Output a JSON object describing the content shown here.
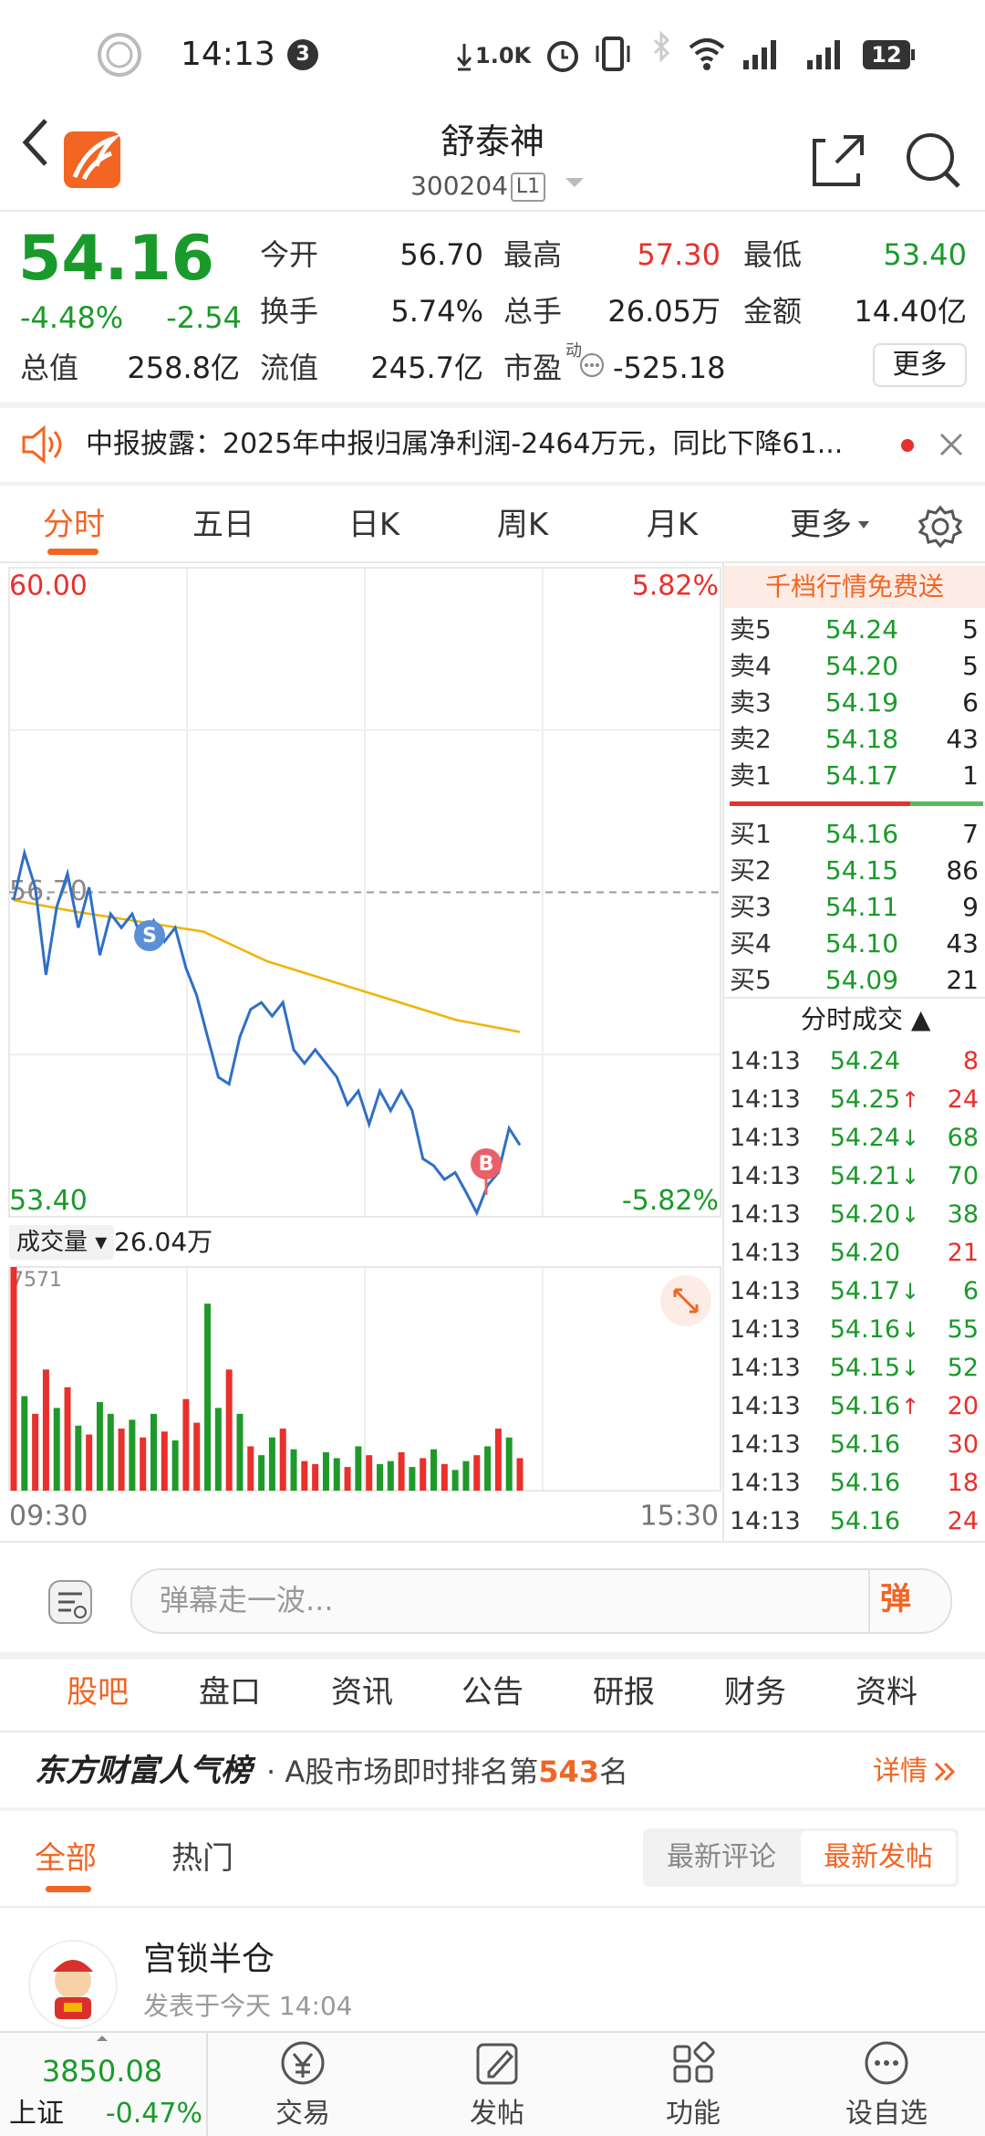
{
  "status_bar": {
    "time": "14:13",
    "badge": "3",
    "net_speed": "1.0K",
    "battery": "12"
  },
  "header": {
    "title": "舒泰神",
    "code": "300204",
    "level": "L1"
  },
  "quote": {
    "price": "54.16",
    "change_pct": "-4.48%",
    "change": "-2.54",
    "stats": [
      {
        "label": "今开",
        "value": "56.70"
      },
      {
        "label": "最高",
        "value": "57.30",
        "color": "#e8302c"
      },
      {
        "label": "最低",
        "value": "53.40",
        "color": "#1a9a2a"
      },
      {
        "label": "换手",
        "value": "5.74%"
      },
      {
        "label": "总手",
        "value": "26.05万"
      },
      {
        "label": "金额",
        "value": "14.40亿"
      },
      {
        "label": "总值",
        "value": "258.8亿"
      },
      {
        "label": "流值",
        "value": "245.7亿"
      },
      {
        "label": "市盈",
        "superscript": "动",
        "value": "-525.18"
      }
    ],
    "more": "更多"
  },
  "notice": "中报披露：2025年中报归属净利润-2464万元，同比下降61...",
  "chart_tabs": [
    "分时",
    "五日",
    "日K",
    "周K",
    "月K",
    "更多"
  ],
  "intraday": {
    "type": "line",
    "ylim": [
      53.4,
      60
    ],
    "yticks": [
      {
        "value": 60,
        "label": "60.00"
      },
      {
        "value": 56.7,
        "label": "56.70"
      },
      {
        "value": 53.4,
        "label": "53.40"
      }
    ],
    "y2lim": [
      -5.82,
      5.82
    ],
    "y2ticks": [
      {
        "value": 5.82,
        "label": "5.82%"
      },
      {
        "value": -5.82,
        "label": "-5.82%"
      }
    ],
    "x_labels": [
      "09:30",
      "15:30"
    ],
    "grid": true,
    "series": [
      {
        "color": "#2f6fc6",
        "values": [
          56.62,
          57.1,
          56.75,
          55.86,
          56.55,
          56.89,
          56.34,
          56.75,
          56.06,
          56.48,
          56.34,
          56.48,
          56.2,
          56.41,
          56.2,
          56.34,
          55.93,
          55.65,
          55.23,
          54.82,
          54.75,
          55.23,
          55.51,
          55.58,
          55.44,
          55.58,
          55.1,
          54.96,
          55.1,
          54.96,
          54.82,
          54.54,
          54.68,
          54.34,
          54.68,
          54.48,
          54.68,
          54.48,
          53.99,
          53.92,
          53.78,
          53.85,
          53.65,
          53.44,
          53.72,
          53.85,
          54.3,
          54.13
        ]
      },
      {
        "color": "#f0b400",
        "values": [
          56.62,
          56.5,
          56.4,
          56.3,
          56.0,
          55.8,
          55.6,
          55.4,
          55.28
        ]
      }
    ],
    "markers": [
      "S",
      "B"
    ],
    "volume": {
      "label": "成交量",
      "total": "26.04万",
      "ylim": [
        0,
        7571
      ],
      "yticks": [
        7571
      ],
      "up_color": "#e8302c",
      "down_color": "#1f9a2a",
      "values": [
        7571,
        3200,
        2600,
        4100,
        2800,
        3500,
        2200,
        1900,
        3000,
        2600,
        2100,
        2400,
        1800,
        2600,
        2000,
        1700,
        3100,
        2300,
        6330,
        2800,
        4100,
        2600,
        1500,
        1200,
        1800,
        2100,
        1400,
        1000,
        900,
        1300,
        1100,
        800,
        1500,
        1200,
        900,
        1000,
        1300,
        800,
        1100,
        1400,
        900,
        700,
        1000,
        1200,
        1500,
        2100,
        1800,
        1100
      ],
      "directions": [
        "up",
        "down",
        "up",
        "up",
        "down",
        "up",
        "down",
        "up",
        "down",
        "down",
        "up",
        "down",
        "up",
        "down",
        "up",
        "down",
        "up",
        "up",
        "down",
        "down",
        "up",
        "down",
        "up",
        "down",
        "down",
        "up",
        "down",
        "up",
        "up",
        "down",
        "down",
        "up",
        "down",
        "up",
        "down",
        "down",
        "up",
        "down",
        "up",
        "down",
        "up",
        "down",
        "down",
        "up",
        "down",
        "up",
        "down",
        "up"
      ]
    }
  },
  "order_book": {
    "header": "千档行情免费送",
    "asks": [
      {
        "label": "卖5",
        "price": "54.24",
        "qty": "5"
      },
      {
        "label": "卖4",
        "price": "54.20",
        "qty": "5"
      },
      {
        "label": "卖3",
        "price": "54.19",
        "qty": "6"
      },
      {
        "label": "卖2",
        "price": "54.18",
        "qty": "43"
      },
      {
        "label": "卖1",
        "price": "54.17",
        "qty": "1"
      }
    ],
    "bids": [
      {
        "label": "买1",
        "price": "54.16",
        "qty": "7"
      },
      {
        "label": "买2",
        "price": "54.15",
        "qty": "86"
      },
      {
        "label": "买3",
        "price": "54.11",
        "qty": "9"
      },
      {
        "label": "买4",
        "price": "54.10",
        "qty": "43"
      },
      {
        "label": "买5",
        "price": "54.09",
        "qty": "21"
      }
    ]
  },
  "trades": {
    "header": "分时成交",
    "rows": [
      {
        "time": "14:13",
        "price": "54.24",
        "qty": "8",
        "color": "#e8302c"
      },
      {
        "time": "14:13",
        "price": "54.25",
        "arrow": "↑",
        "qty": "24",
        "color": "#e8302c"
      },
      {
        "time": "14:13",
        "price": "54.24",
        "arrow": "↓",
        "qty": "68",
        "color": "#1a9a2a"
      },
      {
        "time": "14:13",
        "price": "54.21",
        "arrow": "↓",
        "qty": "70",
        "color": "#1a9a2a"
      },
      {
        "time": "14:13",
        "price": "54.20",
        "arrow": "↓",
        "qty": "38",
        "color": "#1a9a2a"
      },
      {
        "time": "14:13",
        "price": "54.20",
        "qty": "21",
        "color": "#e8302c"
      },
      {
        "time": "14:13",
        "price": "54.17",
        "arrow": "↓",
        "qty": "6",
        "color": "#1a9a2a"
      },
      {
        "time": "14:13",
        "price": "54.16",
        "arrow": "↓",
        "qty": "55",
        "color": "#1a9a2a"
      },
      {
        "time": "14:13",
        "price": "54.15",
        "arrow": "↓",
        "qty": "52",
        "color": "#1a9a2a"
      },
      {
        "time": "14:13",
        "price": "54.16",
        "arrow": "↑",
        "qty": "20",
        "color": "#e8302c"
      },
      {
        "time": "14:13",
        "price": "54.16",
        "qty": "30",
        "color": "#e8302c"
      },
      {
        "time": "14:13",
        "price": "54.16",
        "qty": "18",
        "color": "#e8302c"
      },
      {
        "time": "14:13",
        "price": "54.16",
        "qty": "24",
        "color": "#e8302c"
      }
    ]
  },
  "danmu": {
    "placeholder": "弹幕走一波...",
    "button": "弹"
  },
  "section_tabs": [
    "股吧",
    "盘口",
    "资讯",
    "公告",
    "研报",
    "财务",
    "资料"
  ],
  "ranking": {
    "brand": "东方财富人气榜",
    "text": "· A股市场即时排名第",
    "rank": "543",
    "suffix": "名",
    "detail": "详情"
  },
  "feed": {
    "tabs": [
      "全部",
      "热门"
    ],
    "sort": [
      "最新评论",
      "最新发帖"
    ]
  },
  "post": {
    "author": "宫锁半仓",
    "meta": "发表于今天 14:04"
  },
  "bottom_nav": {
    "index_value": "3850.08",
    "index_name": "上证",
    "index_change": "-0.47%",
    "items": [
      "交易",
      "发帖",
      "功能",
      "设自选"
    ]
  }
}
